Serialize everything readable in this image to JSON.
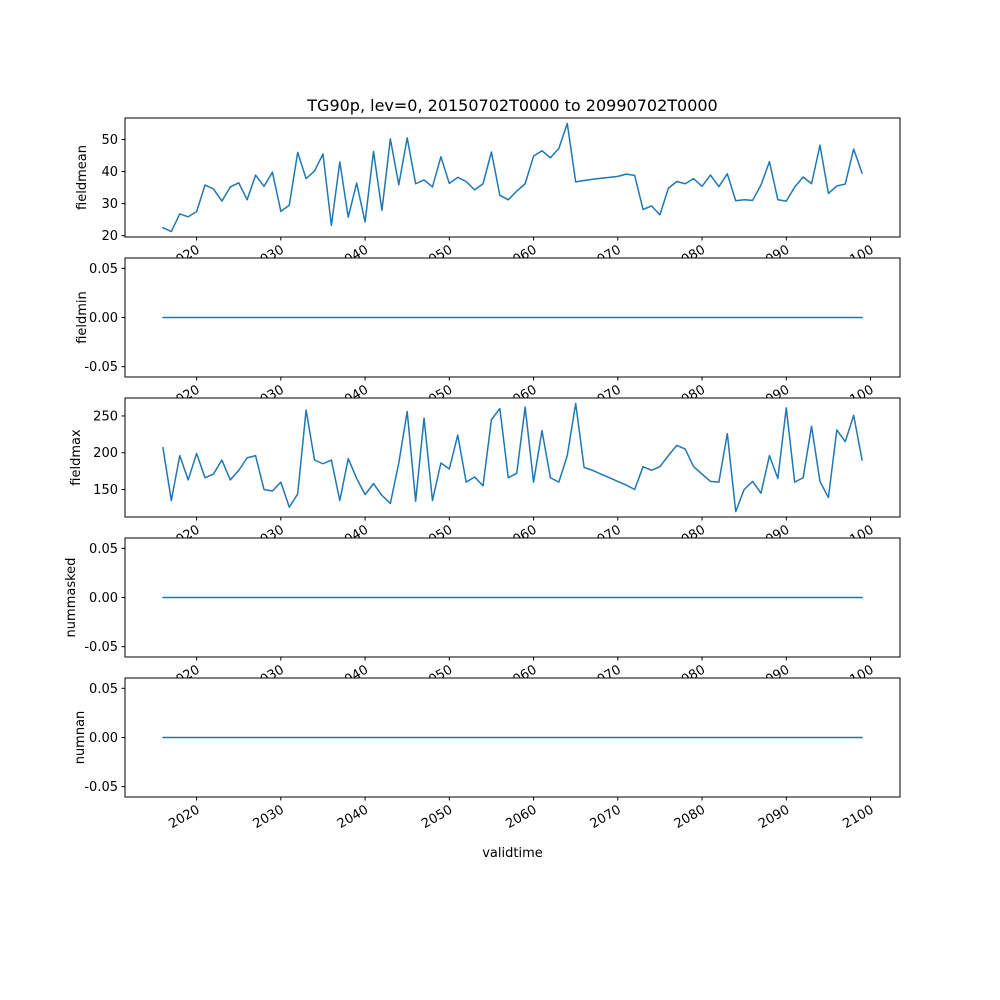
{
  "figure": {
    "title": "TG90p, lev=0, 20150702T0000 to 20990702T0000",
    "xlabel": "validtime"
  },
  "chart_data": {
    "type": "line",
    "title": "TG90p, lev=0, 20150702T0000 to 20990702T0000",
    "xlabel": "validtime",
    "grid": false,
    "legend": "none",
    "line_color": "#1f77b4",
    "x_start": 2016,
    "x_end": 2099,
    "x_step": 1,
    "xlim": [
      2011.5,
      2103.5
    ],
    "xticks": [
      2020,
      2030,
      2040,
      2050,
      2060,
      2070,
      2080,
      2090,
      2100
    ],
    "xtick_labels": [
      "2020",
      "2030",
      "2040",
      "2050",
      "2060",
      "2070",
      "2080",
      "2090",
      "2100"
    ],
    "subplots": [
      {
        "ylabel": "fieldmean",
        "ylim": [
          19.6,
          56.7
        ],
        "yticks": [
          20,
          30,
          40,
          50
        ],
        "ytick_labels": [
          "20",
          "30",
          "40",
          "50"
        ],
        "values": [
          22.5,
          21.3,
          26.8,
          25.9,
          27.5,
          35.8,
          34.6,
          30.8,
          35.2,
          36.5,
          31.2,
          38.9,
          35.4,
          39.8,
          27.6,
          29.5,
          46.0,
          37.8,
          40.2,
          45.5,
          23.2,
          43.0,
          25.8,
          36.4,
          24.3,
          46.3,
          27.9,
          50.2,
          35.9,
          50.5,
          36.2,
          37.4,
          35.2,
          44.6,
          36.3,
          38.2,
          36.9,
          34.3,
          36.2,
          46.1,
          32.6,
          31.2,
          33.9,
          36.2,
          44.8,
          46.5,
          44.3,
          47.2,
          55.0,
          36.8,
          37.2,
          37.6,
          37.9,
          38.2,
          38.5,
          39.2,
          38.8,
          28.2,
          29.3,
          26.5,
          34.8,
          36.9,
          36.2,
          37.8,
          35.4,
          38.9,
          35.3,
          39.3,
          30.9,
          31.2,
          31.0,
          35.8,
          43.1,
          31.2,
          30.8,
          35.2,
          38.3,
          36.2,
          48.2,
          33.2,
          35.5,
          36.1,
          47.0,
          39.5
        ]
      },
      {
        "ylabel": "fieldmin",
        "ylim": [
          -0.0605,
          0.0605
        ],
        "yticks": [
          -0.05,
          0.0,
          0.05
        ],
        "ytick_labels": [
          "-0.05",
          "0.00",
          "0.05"
        ],
        "constant": 0
      },
      {
        "ylabel": "fieldmax",
        "ylim": [
          112.6,
          274.4
        ],
        "yticks": [
          150,
          200,
          250
        ],
        "ytick_labels": [
          "150",
          "200",
          "250"
        ],
        "values": [
          207,
          135,
          196,
          163,
          199,
          166,
          171,
          190,
          163,
          176,
          193,
          196,
          150,
          148,
          160,
          126,
          144,
          258,
          190,
          185,
          190,
          135,
          192,
          165,
          143,
          158,
          142,
          131,
          186,
          256,
          134,
          247,
          135,
          186,
          178,
          224,
          160,
          167,
          155,
          245,
          260,
          166,
          172,
          262,
          160,
          230,
          166,
          160,
          196,
          267,
          180,
          176,
          171,
          166,
          161,
          156,
          150,
          181,
          176,
          181,
          196,
          210,
          205,
          181,
          171,
          161,
          160,
          226,
          120,
          150,
          161,
          145,
          196,
          165,
          261,
          160,
          166,
          236,
          161,
          139,
          231,
          215,
          251,
          190
        ]
      },
      {
        "ylabel": "nummasked",
        "ylim": [
          -0.0605,
          0.0605
        ],
        "yticks": [
          -0.05,
          0.0,
          0.05
        ],
        "ytick_labels": [
          "-0.05",
          "0.00",
          "0.05"
        ],
        "constant": 0
      },
      {
        "ylabel": "numnan",
        "ylim": [
          -0.0605,
          0.0605
        ],
        "yticks": [
          -0.05,
          0.0,
          0.05
        ],
        "ytick_labels": [
          "-0.05",
          "0.00",
          "0.05"
        ],
        "constant": 0
      }
    ]
  }
}
